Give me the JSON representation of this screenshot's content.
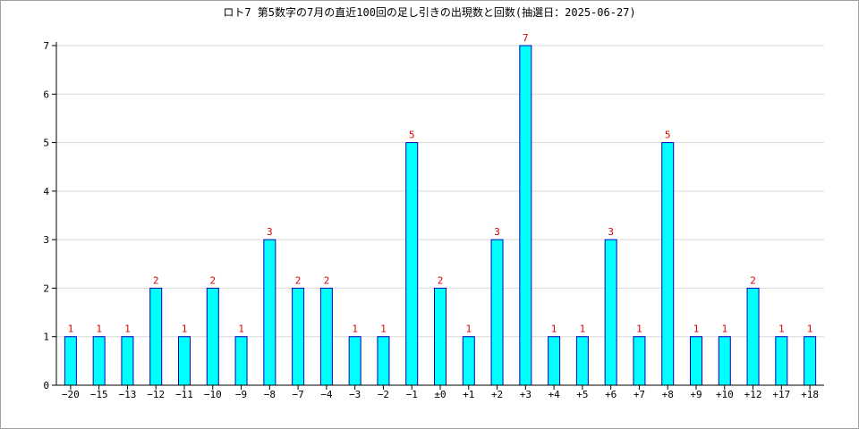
{
  "chart_data": {
    "type": "bar",
    "title": "ロト7 第5数字の7月の直近100回の足し引きの出現数と回数(抽選日：2025-06-27)",
    "xlabel": "",
    "ylabel": "",
    "categories": [
      "−20",
      "−15",
      "−13",
      "−12",
      "−11",
      "−10",
      "−9",
      "−8",
      "−7",
      "−4",
      "−3",
      "−2",
      "−1",
      "±0",
      "+1",
      "+2",
      "+3",
      "+4",
      "+5",
      "+6",
      "+7",
      "+8",
      "+9",
      "+10",
      "+12",
      "+17",
      "+18"
    ],
    "values": [
      1,
      1,
      1,
      2,
      1,
      2,
      1,
      3,
      2,
      2,
      1,
      1,
      5,
      2,
      1,
      3,
      7,
      1,
      1,
      3,
      1,
      5,
      1,
      1,
      2,
      1,
      1
    ],
    "ylim": [
      0,
      7
    ],
    "yticks": [
      0,
      1,
      2,
      3,
      4,
      5,
      6,
      7
    ],
    "grid": true,
    "colors": {
      "bar_fill": "#00ffff",
      "bar_stroke": "#0000c0",
      "data_label": "#dd0000",
      "grid": "#d8d8d8",
      "axis": "#000000"
    }
  }
}
